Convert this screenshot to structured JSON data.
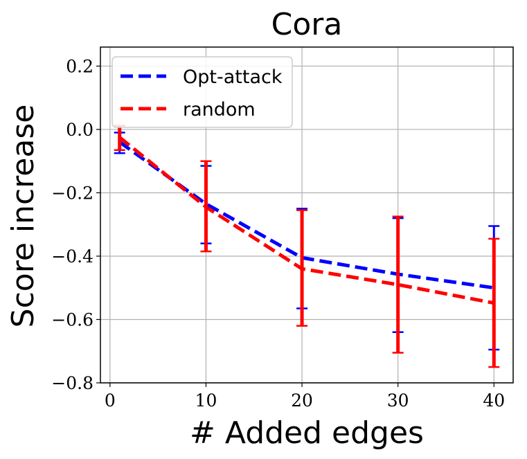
{
  "chart_data": {
    "type": "line",
    "title": "Cora",
    "xlabel": "# Added edges",
    "ylabel": "Score increase",
    "xlim": [
      -1,
      42
    ],
    "ylim": [
      -0.8,
      0.26
    ],
    "xticks": [
      0,
      10,
      20,
      30,
      40
    ],
    "yticks": [
      -0.8,
      -0.6,
      -0.4,
      -0.2,
      0.0,
      0.2
    ],
    "xtick_labels": [
      "0",
      "10",
      "20",
      "30",
      "40"
    ],
    "ytick_labels": [
      "−0.8",
      "−0.6",
      "−0.4",
      "−0.2",
      "0.0",
      "0.2"
    ],
    "grid": true,
    "legend_position": "top-left",
    "series": [
      {
        "name": "Opt-attack",
        "color": "#0000ff",
        "x": [
          1,
          10,
          20,
          30,
          40
        ],
        "y": [
          -0.04,
          -0.235,
          -0.405,
          -0.457,
          -0.5
        ],
        "err_low": [
          -0.075,
          -0.36,
          -0.565,
          -0.64,
          -0.695
        ],
        "err_high": [
          -0.01,
          -0.115,
          -0.25,
          -0.28,
          -0.305
        ]
      },
      {
        "name": "random",
        "color": "#ff0000",
        "x": [
          1,
          10,
          20,
          30,
          40
        ],
        "y": [
          -0.025,
          -0.245,
          -0.44,
          -0.49,
          -0.548
        ],
        "err_low": [
          -0.065,
          -0.385,
          -0.62,
          -0.705,
          -0.75
        ],
        "err_high": [
          0.012,
          -0.1,
          -0.255,
          -0.275,
          -0.345
        ]
      }
    ]
  }
}
